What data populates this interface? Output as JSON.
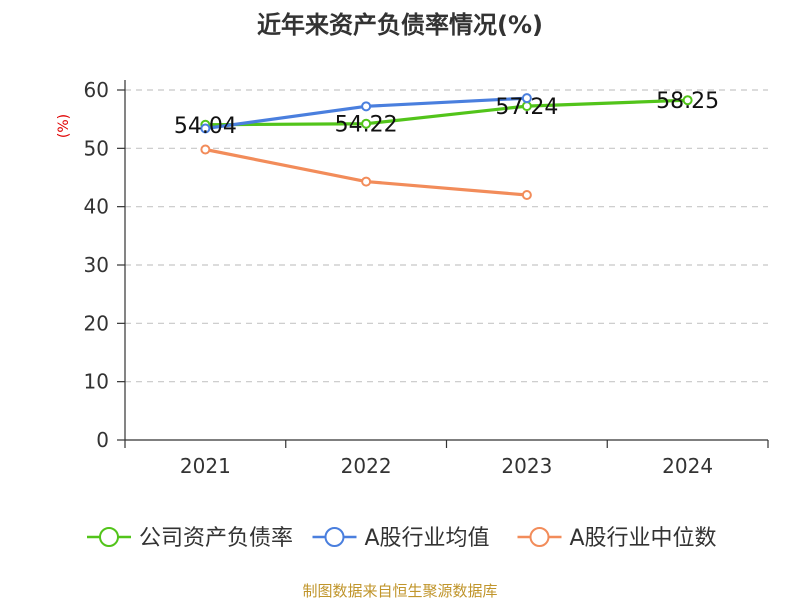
{
  "chart_data": {
    "type": "line",
    "title": "近年来资产负债率情况(%)",
    "unit_label": "(%)",
    "categories": [
      "2021",
      "2022",
      "2023",
      "2024"
    ],
    "ylim": [
      0,
      60
    ],
    "yticks": [
      0,
      10,
      20,
      30,
      40,
      50,
      60
    ],
    "grid": true,
    "legend_position": "bottom",
    "series": [
      {
        "name": "公司资产负债率",
        "color": "#52c41a",
        "values": [
          54.04,
          54.22,
          57.24,
          58.25
        ],
        "data_labels": [
          "54.04",
          "54.22",
          "57.24",
          "58.25"
        ]
      },
      {
        "name": "A股行业均值",
        "color": "#4a7fde",
        "values": [
          53.4,
          57.2,
          58.6,
          null
        ]
      },
      {
        "name": "A股行业中位数",
        "color": "#f28c5a",
        "values": [
          49.8,
          44.3,
          42.0,
          null
        ]
      }
    ]
  },
  "source": "制图数据来自恒生聚源数据库"
}
